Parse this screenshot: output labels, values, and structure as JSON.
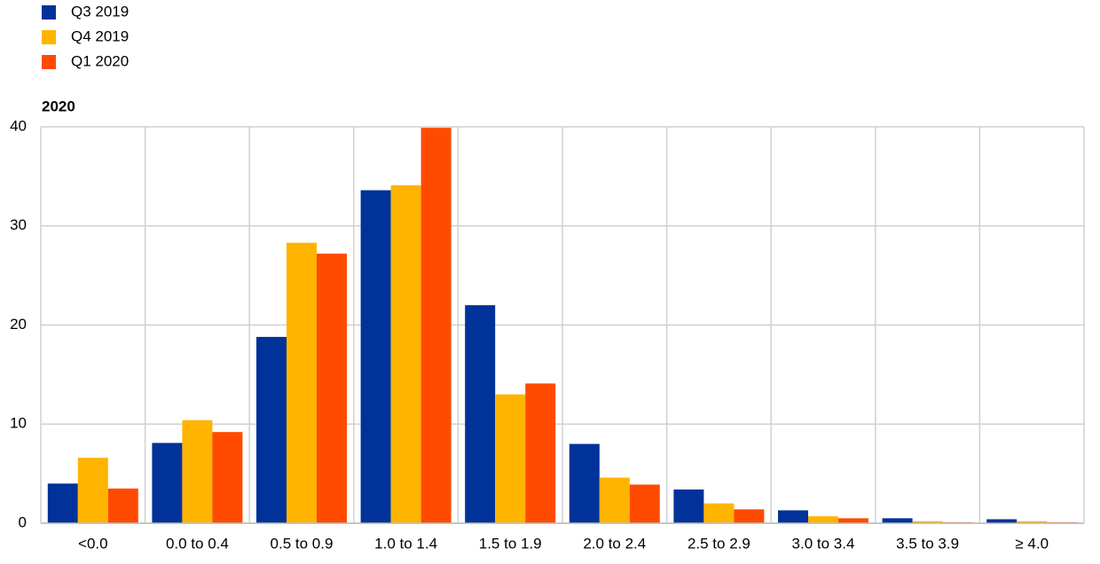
{
  "chart_data": {
    "type": "bar",
    "subtitle": "2020",
    "categories": [
      "<0.0",
      "0.0 to 0.4",
      "0.5 to 0.9",
      "1.0 to 1.4",
      "1.5 to 1.9",
      "2.0 to 2.4",
      "2.5 to 2.9",
      "3.0 to 3.4",
      "3.5 to 3.9",
      "≥ 4.0"
    ],
    "series": [
      {
        "name": "Q3 2019",
        "color": "#003299",
        "values": [
          4.0,
          8.1,
          18.8,
          33.6,
          22.0,
          8.0,
          3.4,
          1.3,
          0.5,
          0.4
        ]
      },
      {
        "name": "Q4 2019",
        "color": "#ffb400",
        "values": [
          6.6,
          10.4,
          28.3,
          34.1,
          13.0,
          4.6,
          2.0,
          0.7,
          0.2,
          0.2
        ]
      },
      {
        "name": "Q1 2020",
        "color": "#ff4b00",
        "values": [
          3.5,
          9.2,
          27.2,
          39.9,
          14.1,
          3.9,
          1.4,
          0.5,
          0.1,
          0.1
        ]
      }
    ],
    "ylim": [
      0,
      40
    ],
    "yticks": [
      0,
      10,
      20,
      30,
      40
    ],
    "grid": true,
    "legend": "top-left"
  }
}
